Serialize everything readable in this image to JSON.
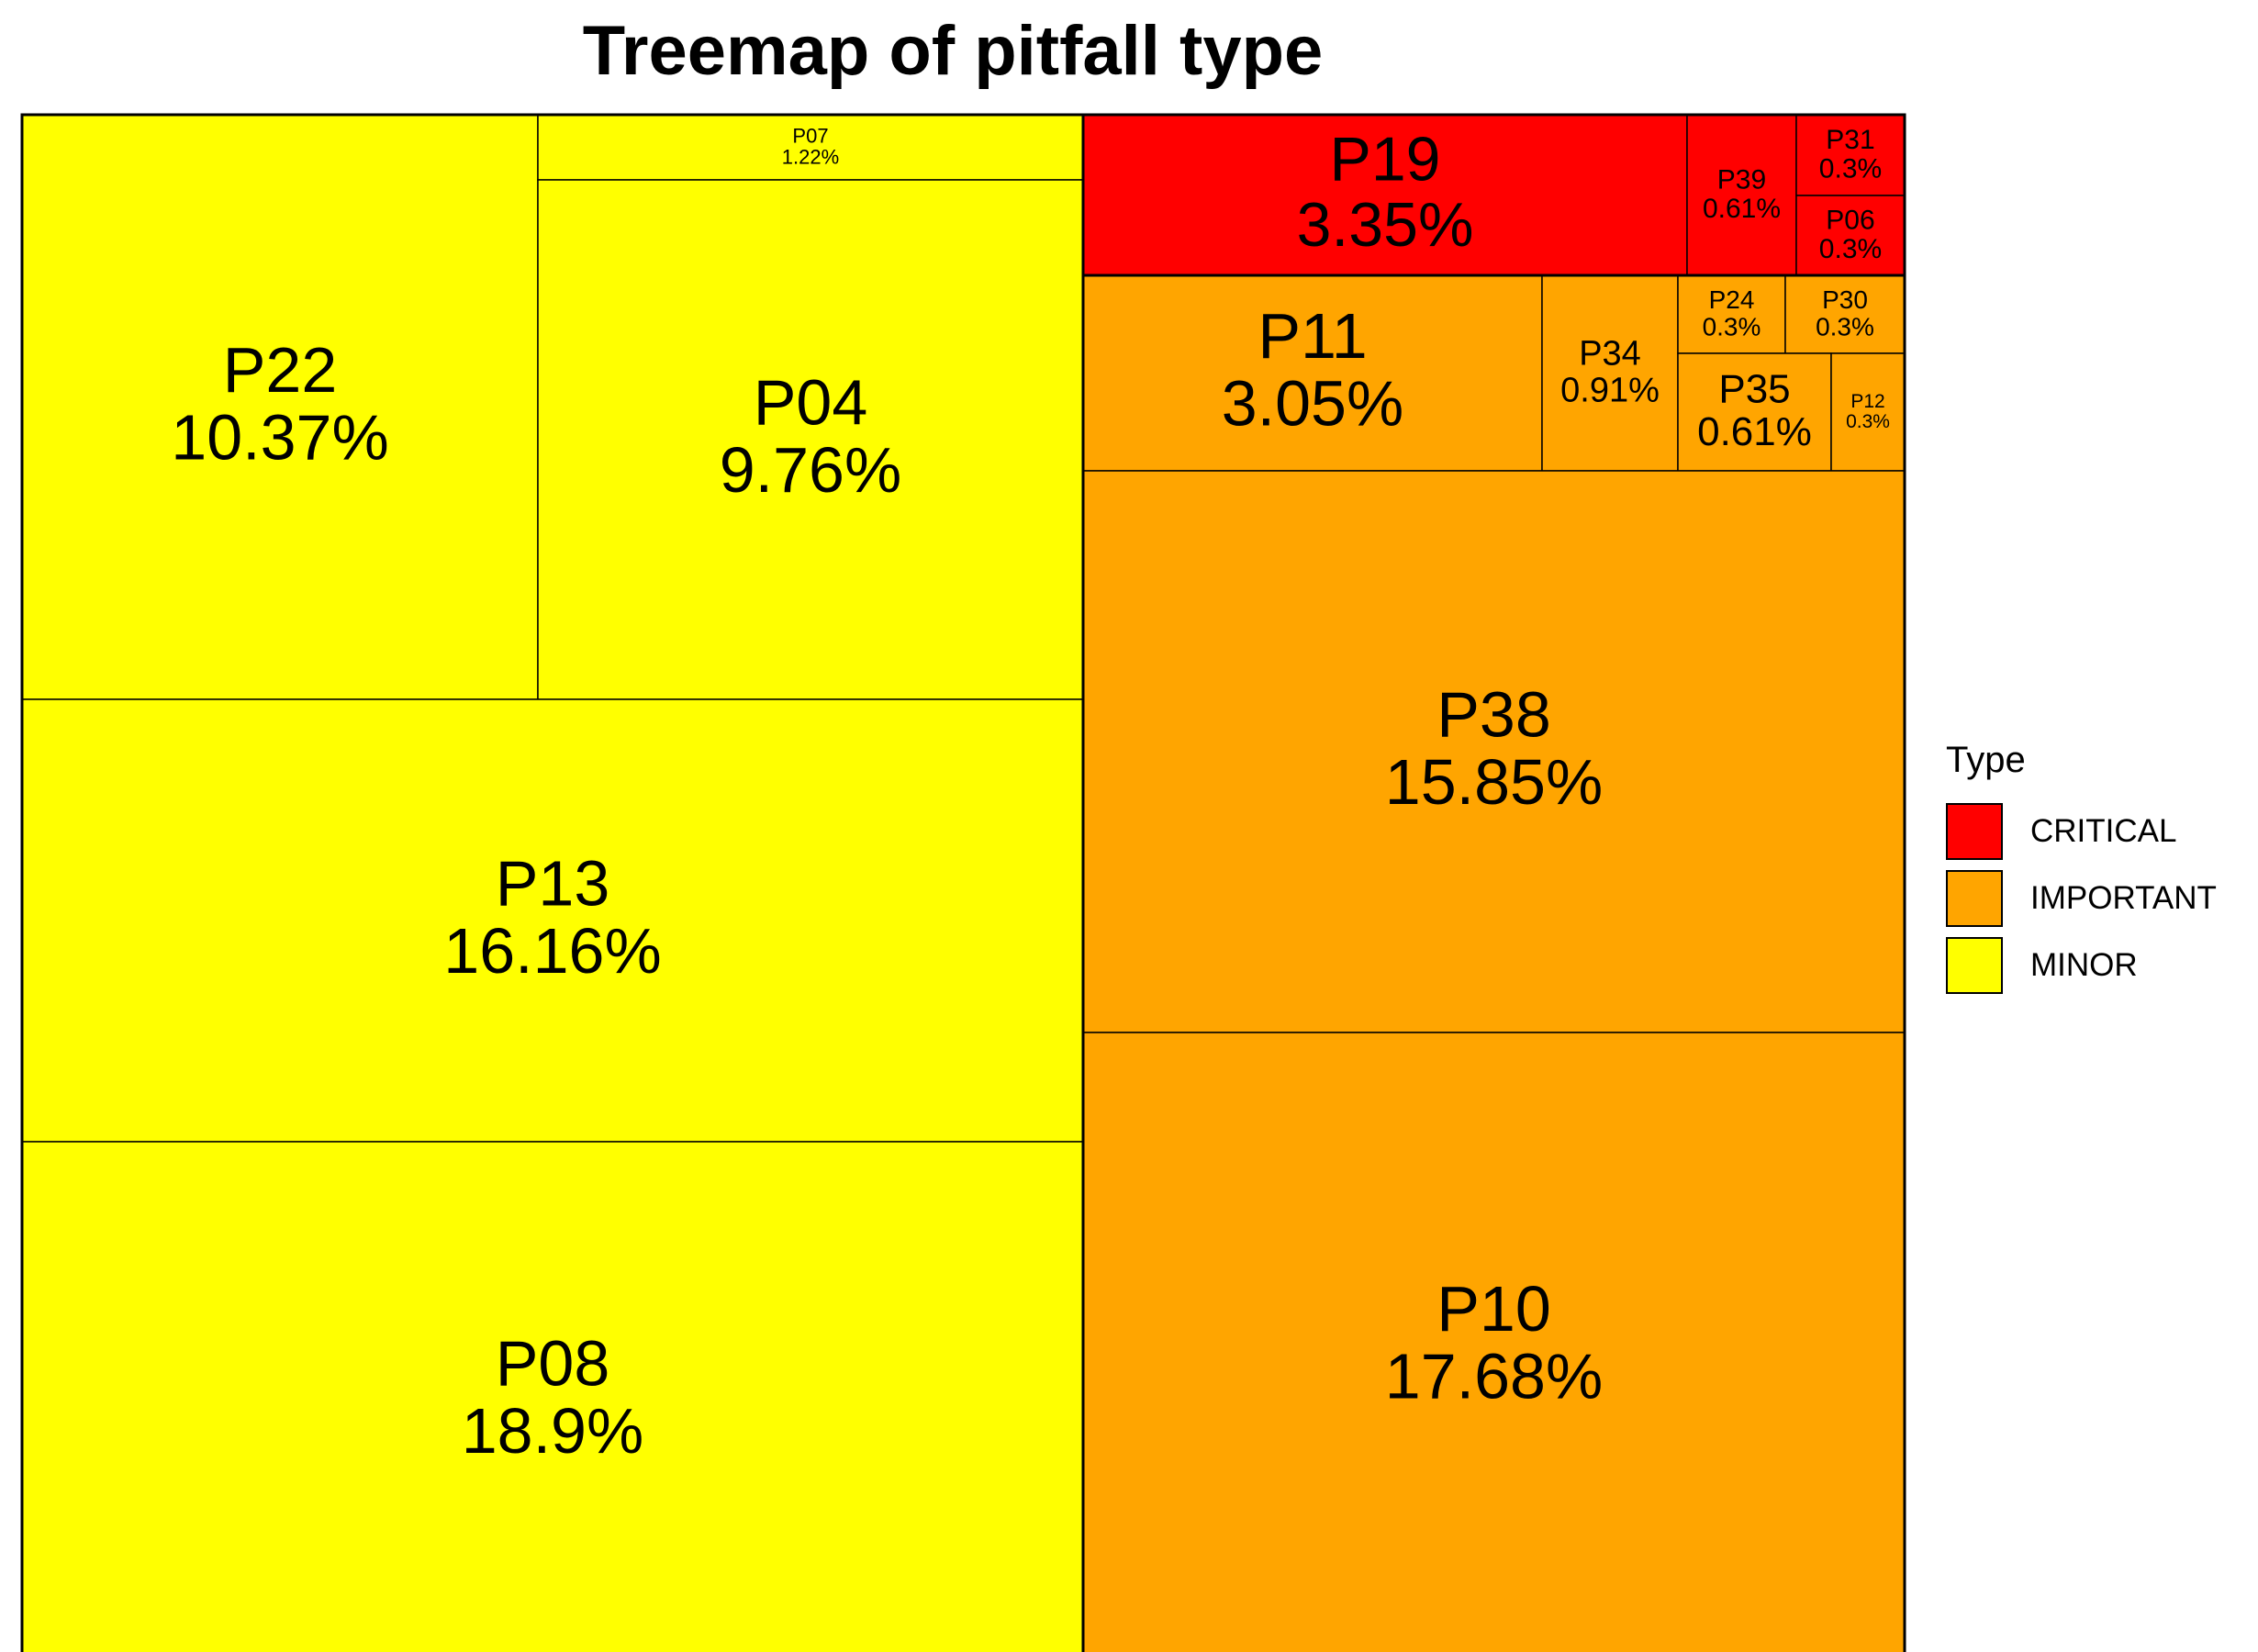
{
  "chart_data": {
    "type": "treemap",
    "title": "Treemap of pitfall type",
    "legend": {
      "title": "Type",
      "position": "right",
      "entries": [
        {
          "name": "CRITICAL",
          "color": "#ff0000"
        },
        {
          "name": "IMPORTANT",
          "color": "#ffa500"
        },
        {
          "name": "MINOR",
          "color": "#ffff00"
        }
      ]
    },
    "groups": [
      {
        "name": "MINOR",
        "color": "#ffff00",
        "items": [
          {
            "id": "P08",
            "label": "18.9%",
            "value": 18.9
          },
          {
            "id": "P13",
            "label": "16.16%",
            "value": 16.16
          },
          {
            "id": "P22",
            "label": "10.37%",
            "value": 10.37
          },
          {
            "id": "P04",
            "label": "9.76%",
            "value": 9.76
          },
          {
            "id": "P07",
            "label": "1.22%",
            "value": 1.22
          }
        ]
      },
      {
        "name": "IMPORTANT",
        "color": "#ffa500",
        "items": [
          {
            "id": "P10",
            "label": "17.68%",
            "value": 17.68
          },
          {
            "id": "P38",
            "label": "15.85%",
            "value": 15.85
          },
          {
            "id": "P11",
            "label": "3.05%",
            "value": 3.05
          },
          {
            "id": "P34",
            "label": "0.91%",
            "value": 0.91
          },
          {
            "id": "P35",
            "label": "0.61%",
            "value": 0.61
          },
          {
            "id": "P24",
            "label": "0.3%",
            "value": 0.3
          },
          {
            "id": "P30",
            "label": "0.3%",
            "value": 0.3
          },
          {
            "id": "P12",
            "label": "0.3%",
            "value": 0.3
          }
        ]
      },
      {
        "name": "CRITICAL",
        "color": "#ff0000",
        "items": [
          {
            "id": "P19",
            "label": "3.35%",
            "value": 3.35
          },
          {
            "id": "P39",
            "label": "0.61%",
            "value": 0.61
          },
          {
            "id": "P31",
            "label": "0.3%",
            "value": 0.3
          },
          {
            "id": "P06",
            "label": "0.3%",
            "value": 0.3
          }
        ]
      }
    ]
  }
}
